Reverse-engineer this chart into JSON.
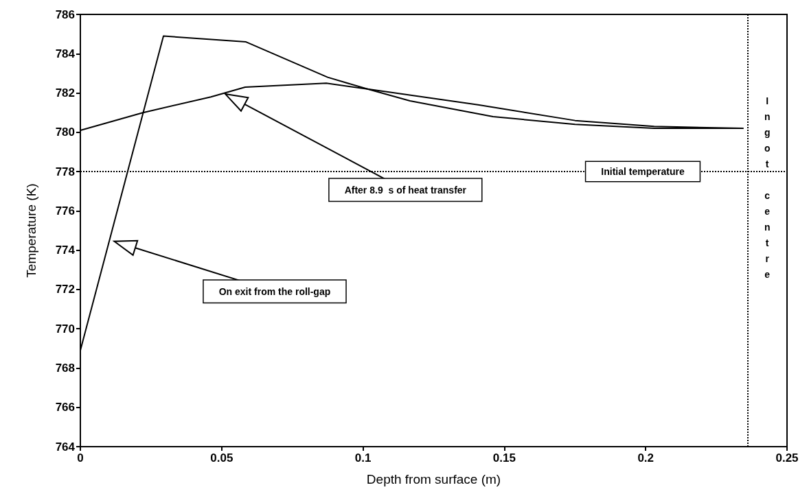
{
  "chart_data": {
    "type": "line",
    "xlabel": "Depth from surface (m)",
    "ylabel": "Temperature (K)",
    "xlim": [
      0,
      0.25
    ],
    "xticks": [
      0,
      0.05,
      0.1,
      0.15,
      0.2,
      0.25
    ],
    "ylim": [
      764,
      786
    ],
    "yticks": [
      764,
      766,
      768,
      770,
      772,
      774,
      776,
      778,
      780,
      782,
      784,
      786
    ],
    "grid": false,
    "marker": "none",
    "line_style": "solid",
    "series": [
      {
        "color": "#000000",
        "x": [
          0,
          0.0158,
          0.0294,
          0.0586,
          0.0875,
          0.1016,
          0.1166,
          0.146,
          0.175,
          0.203,
          0.2344
        ],
        "values": [
          768.9,
          777.5,
          784.9,
          784.6,
          782.8,
          782.2,
          781.6,
          780.8,
          780.4,
          780.2,
          780.2
        ]
      },
      {
        "color": "#000000",
        "x": [
          0,
          0.0221,
          0.0462,
          0.0583,
          0.087,
          0.1016,
          0.1407,
          0.175,
          0.203,
          0.2344
        ],
        "values": [
          780.1,
          781.0,
          781.8,
          782.3,
          782.5,
          782.2,
          781.4,
          780.6,
          780.3,
          780.2
        ]
      }
    ],
    "ref_lines": [
      {
        "axis": "y",
        "value": 778,
        "label": "Initial temperature",
        "line_style": "dotted",
        "color": "#000000"
      },
      {
        "axis": "x",
        "value": 0.236,
        "label": "Ingot centre",
        "line_style": "dotted",
        "color": "#000000"
      }
    ],
    "annotations": [
      "After 8.9  s of heat transfer",
      "On exit from the roll-gap"
    ]
  }
}
